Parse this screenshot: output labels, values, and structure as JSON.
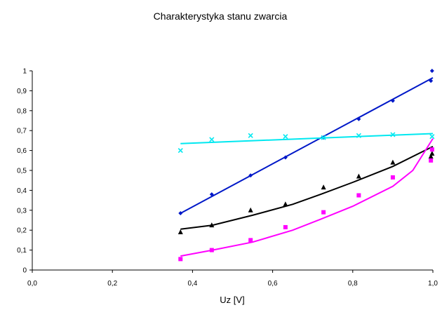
{
  "chart_data": {
    "type": "scatter",
    "title": "Charakterystyka stanu zwarcia",
    "xlabel": "Uz [V]",
    "ylabel": "",
    "xlim": [
      0,
      1
    ],
    "ylim": [
      0,
      1
    ],
    "x_ticks": [
      "0,0",
      "0,2",
      "0,4",
      "0,6",
      "0,8",
      "1,0"
    ],
    "x_tick_values": [
      0,
      0.2,
      0.4,
      0.6,
      0.8,
      1.0
    ],
    "y_ticks": [
      "0",
      "0,1",
      "0,2",
      "0,3",
      "0,4",
      "0,5",
      "0,6",
      "0,7",
      "0,8",
      "0,9",
      "1"
    ],
    "y_tick_values": [
      0,
      0.1,
      0.2,
      0.3,
      0.4,
      0.5,
      0.6,
      0.7,
      0.8,
      0.9,
      1.0
    ],
    "grid": false,
    "legend": "none",
    "series": [
      {
        "name": "series-blue",
        "color": "#0018c8",
        "marker": "diamond",
        "points": [
          [
            0.37,
            0.285
          ],
          [
            0.448,
            0.38
          ],
          [
            0.545,
            0.475
          ],
          [
            0.632,
            0.565
          ],
          [
            0.727,
            0.665
          ],
          [
            0.815,
            0.758
          ],
          [
            0.9,
            0.85
          ],
          [
            0.995,
            0.95
          ],
          [
            0.998,
            1.0
          ]
        ],
        "trend": [
          [
            0.37,
            0.285
          ],
          [
            1.0,
            0.965
          ]
        ]
      },
      {
        "name": "series-cyan",
        "color": "#00e8f0",
        "marker": "x",
        "points": [
          [
            0.37,
            0.6
          ],
          [
            0.448,
            0.655
          ],
          [
            0.545,
            0.675
          ],
          [
            0.632,
            0.67
          ],
          [
            0.727,
            0.665
          ],
          [
            0.815,
            0.675
          ],
          [
            0.9,
            0.68
          ],
          [
            0.998,
            0.67
          ]
        ],
        "trend": [
          [
            0.37,
            0.635
          ],
          [
            1.0,
            0.685
          ]
        ]
      },
      {
        "name": "series-black",
        "color": "#000000",
        "marker": "triangle",
        "points": [
          [
            0.37,
            0.19
          ],
          [
            0.448,
            0.225
          ],
          [
            0.545,
            0.3
          ],
          [
            0.632,
            0.33
          ],
          [
            0.727,
            0.415
          ],
          [
            0.815,
            0.47
          ],
          [
            0.9,
            0.54
          ],
          [
            0.995,
            0.57
          ],
          [
            0.998,
            0.585
          ]
        ],
        "trend": [
          [
            0.37,
            0.205
          ],
          [
            0.45,
            0.225
          ],
          [
            0.55,
            0.275
          ],
          [
            0.65,
            0.33
          ],
          [
            0.72,
            0.38
          ],
          [
            0.8,
            0.44
          ],
          [
            0.9,
            0.52
          ],
          [
            1.0,
            0.62
          ]
        ]
      },
      {
        "name": "series-magenta",
        "color": "#ff00ff",
        "marker": "square",
        "points": [
          [
            0.37,
            0.055
          ],
          [
            0.448,
            0.1
          ],
          [
            0.545,
            0.15
          ],
          [
            0.632,
            0.215
          ],
          [
            0.727,
            0.29
          ],
          [
            0.815,
            0.375
          ],
          [
            0.9,
            0.465
          ],
          [
            0.995,
            0.55
          ],
          [
            0.998,
            0.605
          ]
        ],
        "trend": [
          [
            0.37,
            0.07
          ],
          [
            0.45,
            0.1
          ],
          [
            0.55,
            0.14
          ],
          [
            0.65,
            0.2
          ],
          [
            0.72,
            0.255
          ],
          [
            0.8,
            0.32
          ],
          [
            0.9,
            0.42
          ],
          [
            0.95,
            0.5
          ],
          [
            1.0,
            0.66
          ]
        ]
      }
    ]
  }
}
